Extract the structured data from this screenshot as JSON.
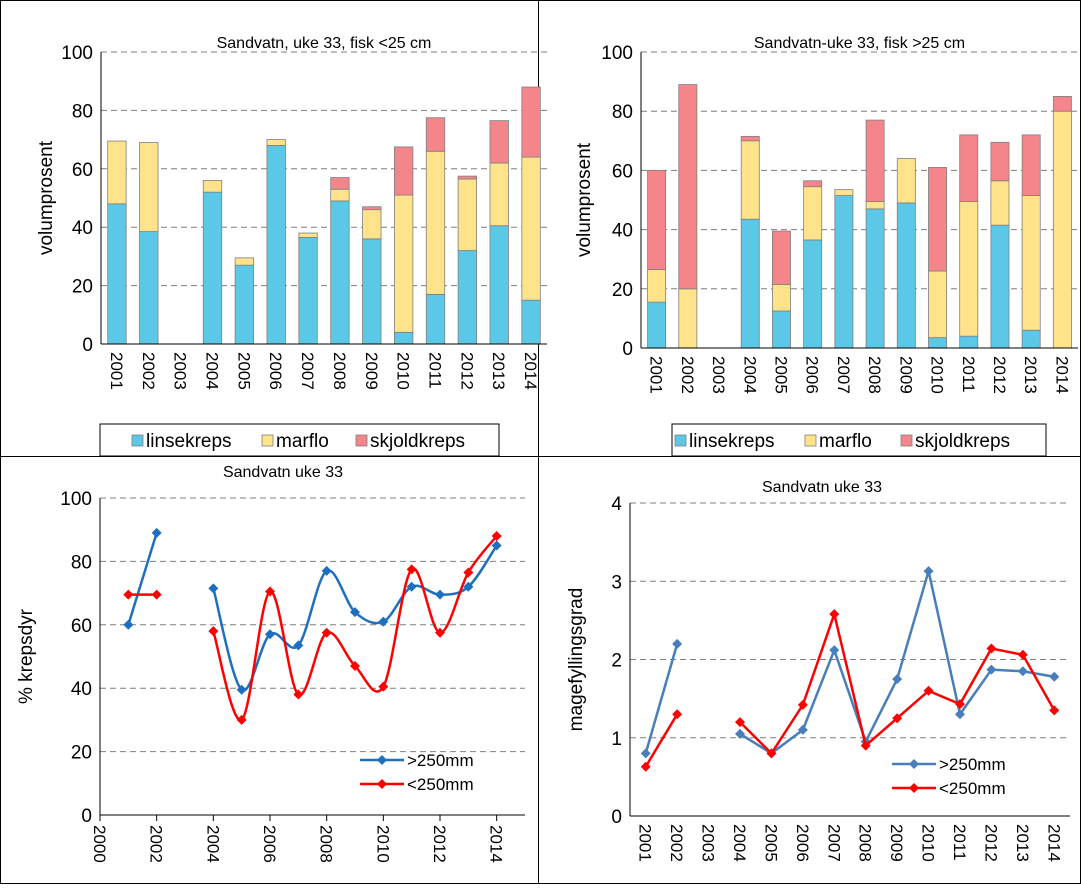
{
  "chart_data": [
    {
      "type": "bar",
      "stacked": true,
      "title": "Sandvatn, uke 33, fisk <25 cm",
      "xlabel": "",
      "ylabel": "volumprosent",
      "ylim": [
        0,
        100
      ],
      "yticks": [
        0,
        20,
        40,
        60,
        80,
        100
      ],
      "grid": true,
      "legend_position": "bottom",
      "categories": [
        "2001",
        "2002",
        "2003",
        "2004",
        "2005",
        "2006",
        "2007",
        "2008",
        "2009",
        "2010",
        "2011",
        "2012",
        "2013",
        "2014"
      ],
      "series": [
        {
          "name": "linsekreps",
          "color": "#5BC8E8",
          "values": [
            48,
            38.5,
            0,
            52,
            27,
            68,
            36.5,
            49,
            36,
            4,
            17,
            32,
            40.5,
            15
          ]
        },
        {
          "name": "marflo",
          "color": "#FFE38A",
          "values": [
            21.5,
            30.5,
            0,
            4,
            2.5,
            2,
            1.5,
            4,
            10,
            47,
            49,
            24.5,
            21.5,
            49
          ]
        },
        {
          "name": "skjoldkreps",
          "color": "#F4868B",
          "values": [
            0,
            0,
            0,
            0,
            0,
            0,
            0,
            4,
            1,
            16.5,
            11.5,
            1,
            14.5,
            24
          ]
        }
      ]
    },
    {
      "type": "bar",
      "stacked": true,
      "title": "Sandvatn-uke 33, fisk >25 cm",
      "xlabel": "",
      "ylabel": "volumprosent",
      "ylim": [
        0,
        100
      ],
      "yticks": [
        0,
        20,
        40,
        60,
        80,
        100
      ],
      "grid": true,
      "legend_position": "bottom",
      "categories": [
        "2001",
        "2002",
        "2003",
        "2004",
        "2005",
        "2006",
        "2007",
        "2008",
        "2009",
        "2010",
        "2011",
        "2012",
        "2013",
        "2014"
      ],
      "series": [
        {
          "name": "linsekreps",
          "color": "#5BC8E8",
          "values": [
            15.5,
            0,
            0,
            43.5,
            12.5,
            36.5,
            51.5,
            47,
            49,
            3.5,
            4,
            41.5,
            6,
            0
          ]
        },
        {
          "name": "marflo",
          "color": "#FFE38A",
          "values": [
            11,
            20,
            0,
            26.5,
            9,
            18,
            2,
            2.5,
            15,
            22.5,
            45.5,
            15,
            45.5,
            80
          ]
        },
        {
          "name": "skjoldkreps",
          "color": "#F4868B",
          "values": [
            33.5,
            69,
            0,
            1.5,
            18,
            2,
            0,
            27.5,
            0,
            35,
            22.5,
            13,
            20.5,
            5
          ]
        }
      ]
    },
    {
      "type": "line",
      "smooth": true,
      "title": "Sandvatn uke 33",
      "xlabel": "",
      "ylabel": "% krepsdyr",
      "xlim": [
        2000,
        2015
      ],
      "xticks": [
        2000,
        2002,
        2004,
        2006,
        2008,
        2010,
        2012,
        2014
      ],
      "ylim": [
        0,
        100
      ],
      "yticks": [
        0,
        20,
        40,
        60,
        80,
        100
      ],
      "grid": true,
      "legend_position": "bottom-right",
      "series": [
        {
          "name": ">250mm",
          "color": "#1F6FBF",
          "segments": [
            [
              [
                2001,
                60
              ],
              [
                2002,
                89
              ]
            ],
            [
              [
                2004,
                71.5
              ],
              [
                2005,
                39.5
              ],
              [
                2006,
                57
              ],
              [
                2007,
                53.5
              ],
              [
                2008,
                77
              ],
              [
                2009,
                64
              ],
              [
                2010,
                61
              ],
              [
                2011,
                72
              ],
              [
                2012,
                69.5
              ],
              [
                2013,
                72
              ],
              [
                2014,
                85
              ]
            ]
          ]
        },
        {
          "name": "<250mm",
          "color": "#FF0000",
          "segments": [
            [
              [
                2001,
                69.5
              ],
              [
                2002,
                69.5
              ]
            ],
            [
              [
                2004,
                58
              ],
              [
                2005,
                30
              ],
              [
                2006,
                70.5
              ],
              [
                2007,
                38
              ],
              [
                2008,
                57.5
              ],
              [
                2009,
                47
              ],
              [
                2010,
                40.5
              ],
              [
                2011,
                77.5
              ],
              [
                2012,
                57.5
              ],
              [
                2013,
                76.5
              ],
              [
                2014,
                88
              ]
            ]
          ]
        }
      ]
    },
    {
      "type": "line",
      "smooth": false,
      "title": "Sandvatn uke 33",
      "xlabel": "",
      "ylabel": "magefyllingsgrad",
      "categories": [
        "2001",
        "2002",
        "2003",
        "2004",
        "2005",
        "2006",
        "2007",
        "2008",
        "2009",
        "2010",
        "2011",
        "2012",
        "2013",
        "2014"
      ],
      "ylim": [
        0,
        4
      ],
      "yticks": [
        0,
        1,
        2,
        3,
        4
      ],
      "grid": true,
      "legend_position": "bottom-right",
      "series": [
        {
          "name": ">250mm",
          "color": "#4A7EBB",
          "values": [
            0.8,
            2.2,
            null,
            1.05,
            0.8,
            1.1,
            2.12,
            0.95,
            1.75,
            3.13,
            1.3,
            1.87,
            1.85,
            1.78
          ]
        },
        {
          "name": "<250mm",
          "color": "#FF0000",
          "values": [
            0.63,
            1.3,
            null,
            1.2,
            0.8,
            1.42,
            2.58,
            0.9,
            1.25,
            1.6,
            1.43,
            2.14,
            2.06,
            1.35
          ]
        }
      ]
    }
  ]
}
